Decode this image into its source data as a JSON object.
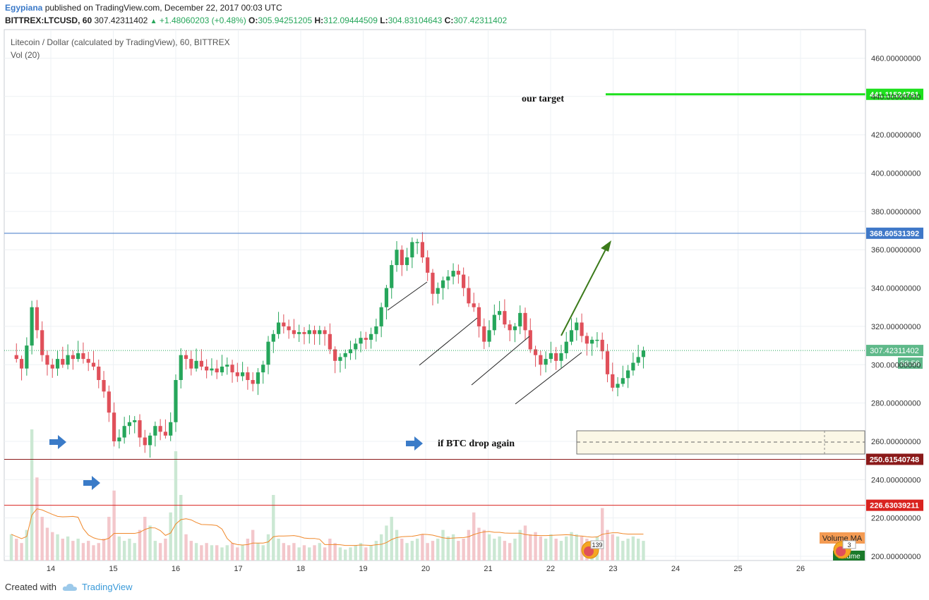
{
  "header": {
    "author": "Egypiana",
    "published": "published on TradingView.com, December 22, 2017 00:03 UTC",
    "symbol": "BITTREX:LTCUSD, 60",
    "last": "307.42311402",
    "change": "+1.48060203 (+0.48%)",
    "o_label": "O:",
    "o": "305.94251205",
    "h_label": "H:",
    "h": "312.09444509",
    "l_label": "L:",
    "l": "304.83104643",
    "c_label": "C:",
    "c": "307.42311402"
  },
  "series_title": "Litecoin / Dollar (calculated by TradingView), 60, BITTREX",
  "volume_title": "Vol (20)",
  "footer": {
    "created_with": "Created with",
    "brand": "TradingView"
  },
  "colors": {
    "up": "#26a65b",
    "down": "#e0505a",
    "up_vol": "#cbe8d3",
    "down_vol": "#f3c7cb",
    "target": "#1ee01e",
    "resistance": "#3f78c8",
    "support1": "#8b1a1a",
    "support2": "#d9231f",
    "arrow_green": "#3b7a1a",
    "blue_arrow": "#3a7bc8",
    "vol_ma": "#f0882a",
    "grid": "#edf1f4"
  },
  "chart_data": {
    "type": "candlestick",
    "ylim": [
      197,
      473
    ],
    "y_ticks": [
      "460.00000000",
      "440.00000000",
      "420.00000000",
      "400.00000000",
      "380.00000000",
      "360.00000000",
      "340.00000000",
      "320.00000000",
      "300.00000000",
      "280.00000000",
      "260.00000000",
      "240.00000000",
      "220.00000000",
      "200.00000000"
    ],
    "y_tick_values": [
      460,
      440,
      420,
      400,
      380,
      360,
      340,
      320,
      300,
      280,
      260,
      240,
      220,
      200
    ],
    "x_ticks": [
      "14",
      "15",
      "16",
      "17",
      "18",
      "19",
      "20",
      "21",
      "22",
      "23",
      "24",
      "25",
      "26"
    ],
    "price_lines": [
      {
        "label": "441.11524761",
        "value": 441.11524761,
        "kind": "target"
      },
      {
        "label": "368.60531392",
        "value": 368.60531392,
        "kind": "resistance"
      },
      {
        "label": "250.61540748",
        "value": 250.61540748,
        "kind": "support1"
      },
      {
        "label": "226.63039211",
        "value": 226.63039211,
        "kind": "support2"
      }
    ],
    "last_price": {
      "label": "307.42311402",
      "value": 307.42311402,
      "countdown": "58:56"
    },
    "annotations": {
      "target_text": "our target",
      "drop_text": "if BTC drop again",
      "volume_ma_label": "Volume MA",
      "volume_badge": "Volume",
      "badge_count_1": "139",
      "badge_count_2": "3"
    },
    "close_path_hours": [
      [
        0,
        305
      ],
      [
        2,
        303
      ],
      [
        4,
        298
      ],
      [
        6,
        310
      ],
      [
        8,
        330
      ],
      [
        10,
        318
      ],
      [
        12,
        305
      ],
      [
        14,
        300
      ],
      [
        16,
        298
      ],
      [
        18,
        303
      ],
      [
        20,
        300
      ],
      [
        22,
        305
      ],
      [
        24,
        303
      ],
      [
        26,
        306
      ],
      [
        28,
        303
      ],
      [
        30,
        301
      ],
      [
        32,
        299
      ],
      [
        34,
        292
      ],
      [
        36,
        286
      ],
      [
        38,
        275
      ],
      [
        40,
        260
      ],
      [
        42,
        262
      ],
      [
        44,
        268
      ],
      [
        46,
        270
      ],
      [
        48,
        271
      ],
      [
        50,
        262
      ],
      [
        52,
        258
      ],
      [
        54,
        263
      ],
      [
        56,
        268
      ],
      [
        58,
        265
      ],
      [
        60,
        263
      ],
      [
        62,
        270
      ],
      [
        64,
        292
      ],
      [
        66,
        305
      ],
      [
        68,
        303
      ],
      [
        70,
        298
      ],
      [
        72,
        302
      ],
      [
        74,
        299
      ],
      [
        76,
        297
      ],
      [
        78,
        298
      ],
      [
        80,
        296
      ],
      [
        82,
        299
      ],
      [
        84,
        300
      ],
      [
        86,
        296
      ],
      [
        88,
        294
      ],
      [
        90,
        296
      ],
      [
        92,
        292
      ],
      [
        94,
        290
      ],
      [
        96,
        296
      ],
      [
        98,
        300
      ],
      [
        100,
        312
      ],
      [
        102,
        316
      ],
      [
        104,
        322
      ],
      [
        106,
        320
      ],
      [
        108,
        318
      ],
      [
        110,
        316
      ],
      [
        112,
        317
      ],
      [
        114,
        316
      ],
      [
        116,
        318
      ],
      [
        118,
        316
      ],
      [
        120,
        318
      ],
      [
        122,
        316
      ],
      [
        124,
        308
      ],
      [
        126,
        302
      ],
      [
        128,
        304
      ],
      [
        130,
        306
      ],
      [
        132,
        308
      ],
      [
        134,
        311
      ],
      [
        136,
        314
      ],
      [
        138,
        313
      ],
      [
        140,
        316
      ],
      [
        142,
        320
      ],
      [
        144,
        330
      ],
      [
        146,
        340
      ],
      [
        148,
        352
      ],
      [
        150,
        360
      ],
      [
        152,
        352
      ],
      [
        154,
        356
      ],
      [
        156,
        364
      ],
      [
        158,
        364
      ],
      [
        160,
        356
      ],
      [
        162,
        348
      ],
      [
        164,
        337
      ],
      [
        166,
        340
      ],
      [
        168,
        344
      ],
      [
        170,
        346
      ],
      [
        172,
        349
      ],
      [
        174,
        347
      ],
      [
        176,
        340
      ],
      [
        178,
        332
      ],
      [
        180,
        330
      ],
      [
        182,
        320
      ],
      [
        184,
        312
      ],
      [
        186,
        318
      ],
      [
        188,
        326
      ],
      [
        190,
        328
      ],
      [
        192,
        321
      ],
      [
        194,
        318
      ],
      [
        196,
        320
      ],
      [
        198,
        327
      ],
      [
        200,
        318
      ],
      [
        202,
        308
      ],
      [
        204,
        305
      ],
      [
        206,
        300
      ],
      [
        208,
        303
      ],
      [
        210,
        306
      ],
      [
        212,
        302
      ],
      [
        214,
        306
      ],
      [
        216,
        312
      ],
      [
        218,
        318
      ],
      [
        220,
        322
      ],
      [
        222,
        315
      ],
      [
        224,
        311
      ],
      [
        226,
        313
      ],
      [
        228,
        313
      ],
      [
        230,
        307
      ],
      [
        232,
        295
      ],
      [
        234,
        288
      ],
      [
        236,
        290
      ],
      [
        238,
        293
      ],
      [
        240,
        297
      ],
      [
        242,
        301
      ],
      [
        244,
        304
      ],
      [
        246,
        307.4
      ]
    ],
    "volume_hours": [
      [
        0,
        12
      ],
      [
        2,
        10
      ],
      [
        4,
        8
      ],
      [
        6,
        14
      ],
      [
        8,
        60
      ],
      [
        10,
        38
      ],
      [
        12,
        20
      ],
      [
        14,
        15
      ],
      [
        16,
        13
      ],
      [
        18,
        12
      ],
      [
        20,
        10
      ],
      [
        22,
        11
      ],
      [
        24,
        9
      ],
      [
        26,
        10
      ],
      [
        28,
        8
      ],
      [
        30,
        9
      ],
      [
        32,
        7
      ],
      [
        34,
        8
      ],
      [
        36,
        10
      ],
      [
        38,
        20
      ],
      [
        40,
        32
      ],
      [
        42,
        11
      ],
      [
        44,
        9
      ],
      [
        46,
        10
      ],
      [
        48,
        8
      ],
      [
        50,
        14
      ],
      [
        52,
        20
      ],
      [
        54,
        16
      ],
      [
        56,
        9
      ],
      [
        58,
        8
      ],
      [
        60,
        10
      ],
      [
        62,
        22
      ],
      [
        64,
        50
      ],
      [
        66,
        30
      ],
      [
        68,
        12
      ],
      [
        70,
        9
      ],
      [
        72,
        8
      ],
      [
        74,
        7
      ],
      [
        76,
        8
      ],
      [
        78,
        7
      ],
      [
        80,
        7
      ],
      [
        82,
        6
      ],
      [
        84,
        7
      ],
      [
        86,
        8
      ],
      [
        88,
        6
      ],
      [
        90,
        7
      ],
      [
        92,
        10
      ],
      [
        94,
        14
      ],
      [
        96,
        8
      ],
      [
        98,
        7
      ],
      [
        100,
        12
      ],
      [
        102,
        30
      ],
      [
        104,
        10
      ],
      [
        106,
        8
      ],
      [
        108,
        7
      ],
      [
        110,
        8
      ],
      [
        112,
        6
      ],
      [
        114,
        7
      ],
      [
        116,
        6
      ],
      [
        118,
        7
      ],
      [
        120,
        8
      ],
      [
        122,
        6
      ],
      [
        124,
        10
      ],
      [
        126,
        8
      ],
      [
        128,
        6
      ],
      [
        130,
        5
      ],
      [
        132,
        6
      ],
      [
        134,
        7
      ],
      [
        136,
        8
      ],
      [
        138,
        6
      ],
      [
        140,
        7
      ],
      [
        142,
        9
      ],
      [
        144,
        12
      ],
      [
        146,
        16
      ],
      [
        148,
        20
      ],
      [
        150,
        14
      ],
      [
        152,
        10
      ],
      [
        154,
        8
      ],
      [
        156,
        9
      ],
      [
        158,
        10
      ],
      [
        160,
        12
      ],
      [
        162,
        8
      ],
      [
        164,
        9
      ],
      [
        166,
        10
      ],
      [
        168,
        14
      ],
      [
        170,
        11
      ],
      [
        172,
        12
      ],
      [
        174,
        9
      ],
      [
        176,
        10
      ],
      [
        178,
        14
      ],
      [
        180,
        22
      ],
      [
        182,
        15
      ],
      [
        184,
        14
      ],
      [
        186,
        12
      ],
      [
        188,
        10
      ],
      [
        190,
        11
      ],
      [
        192,
        9
      ],
      [
        194,
        8
      ],
      [
        196,
        10
      ],
      [
        198,
        14
      ],
      [
        200,
        16
      ],
      [
        202,
        12
      ],
      [
        204,
        13
      ],
      [
        206,
        11
      ],
      [
        208,
        10
      ],
      [
        210,
        12
      ],
      [
        212,
        10
      ],
      [
        214,
        9
      ],
      [
        216,
        11
      ],
      [
        218,
        13
      ],
      [
        220,
        12
      ],
      [
        222,
        11
      ],
      [
        224,
        10
      ],
      [
        226,
        9
      ],
      [
        228,
        11
      ],
      [
        230,
        24
      ],
      [
        232,
        14
      ],
      [
        234,
        12
      ],
      [
        236,
        11
      ],
      [
        238,
        9
      ],
      [
        240,
        10
      ],
      [
        242,
        11
      ],
      [
        244,
        10
      ],
      [
        246,
        9
      ]
    ]
  }
}
